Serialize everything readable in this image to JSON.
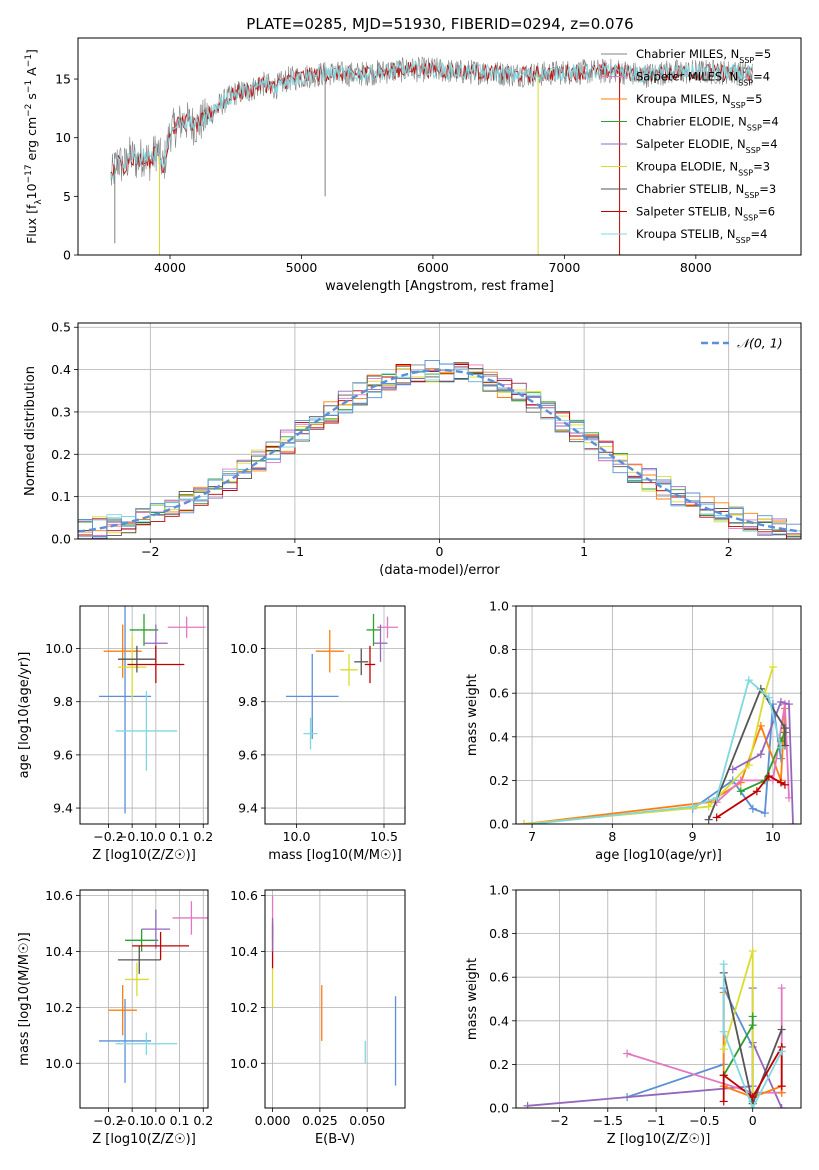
{
  "title": "PLATE=0285, MJD=51930, FIBERID=0294, z=0.076",
  "colors": {
    "chabrier_miles": "#1f77b4",
    "salpeter_miles": "#e377c2",
    "kroupa_miles": "#ff7f0e",
    "chabrier_elodie": "#2ca02c",
    "salpeter_elodie": "#9467bd",
    "kroupa_elodie": "#dbdb2d",
    "chabrier_stelib": "#555555",
    "salpeter_stelib": "#c00000",
    "kroupa_stelib": "#7fd8e0",
    "gaussian": "#5b8fd9"
  },
  "chart_data": [
    {
      "id": "spectrum",
      "type": "line",
      "title": "PLATE=0285, MJD=51930, FIBERID=0294, z=0.076",
      "xlabel": "wavelength [Angstrom, rest frame]",
      "ylabel_parts": [
        "Flux [f",
        "λ",
        "10",
        "−17",
        " erg cm",
        "−2",
        " s",
        "−1",
        " A",
        "−1",
        "]"
      ],
      "xlim": [
        3300,
        8800
      ],
      "ylim": [
        0,
        18.5
      ],
      "xticks": [
        4000,
        5000,
        6000,
        7000,
        8000
      ],
      "yticks": [
        0,
        5,
        10,
        15
      ],
      "legend_position": "top-right",
      "series": [
        {
          "name_parts": [
            "Chabrier MILES, N",
            "SSP",
            "=5"
          ],
          "color": "#808080"
        },
        {
          "name_parts": [
            "Salpeter MILES, N",
            "SSP",
            "=4"
          ],
          "color": "#e377c2"
        },
        {
          "name_parts": [
            "Kroupa MILES, N",
            "SSP",
            "=5"
          ],
          "color": "#ff7f0e"
        },
        {
          "name_parts": [
            "Chabrier ELODIE, N",
            "SSP",
            "=4"
          ],
          "color": "#2ca02c"
        },
        {
          "name_parts": [
            "Salpeter ELODIE, N",
            "SSP",
            "=4"
          ],
          "color": "#9467bd"
        },
        {
          "name_parts": [
            "Kroupa ELODIE, N",
            "SSP",
            "=3"
          ],
          "color": "#dbdb2d"
        },
        {
          "name_parts": [
            "Chabrier STELIB, N",
            "SSP",
            "=3"
          ],
          "color": "#555555"
        },
        {
          "name_parts": [
            "Salpeter STELIB, N",
            "SSP",
            "=6"
          ],
          "color": "#c00000"
        },
        {
          "name_parts": [
            "Kroupa STELIB, N",
            "SSP",
            "=4"
          ],
          "color": "#7fd8e0"
        }
      ],
      "continuum": {
        "x": [
          3550,
          3600,
          3650,
          3700,
          3750,
          3800,
          3850,
          3900,
          3950,
          4000,
          4100,
          4200,
          4300,
          4400,
          4500,
          4600,
          4700,
          4800,
          4900,
          5000,
          5200,
          5400,
          5600,
          5800,
          6000,
          6200,
          6400,
          6600,
          6800,
          7000,
          7200,
          7400,
          7600,
          7800,
          8000,
          8200,
          8400
        ],
        "y": [
          6.5,
          8.0,
          7.5,
          8.5,
          8.0,
          8.5,
          8.0,
          9.0,
          7.5,
          10.5,
          11.5,
          11.0,
          12.0,
          13.0,
          13.8,
          14.0,
          14.6,
          14.3,
          15.0,
          15.2,
          15.5,
          15.4,
          15.6,
          15.8,
          15.8,
          15.6,
          15.6,
          15.4,
          15.4,
          15.6,
          15.6,
          15.7,
          15.3,
          15.6,
          15.6,
          15.6,
          15.5
        ]
      },
      "dips": [
        {
          "x": 3580,
          "y": 1.0,
          "color": "#808080"
        },
        {
          "x": 3920,
          "y": 0.0,
          "color": "#dbdb2d"
        },
        {
          "x": 6800,
          "y": 0.0,
          "color": "#dbdb2d"
        },
        {
          "x": 7420,
          "y": 0.0,
          "color": "#c00000"
        },
        {
          "x": 5180,
          "y": 5.0,
          "color": "#808080"
        }
      ]
    },
    {
      "id": "residuals",
      "type": "line",
      "xlabel": "(data-model)/error",
      "ylabel": "Normed distribution",
      "xlim": [
        -2.5,
        2.5
      ],
      "ylim": [
        0,
        0.51
      ],
      "xticks": [
        -2,
        -1,
        0,
        1,
        2
      ],
      "yticks": [
        0.0,
        0.1,
        0.2,
        0.3,
        0.4,
        0.5
      ],
      "grid": true,
      "legend_position": "top-right",
      "gaussian_label": "𝒩(0, 1)",
      "bin_width": 0.1,
      "hist_colors": [
        "#808080",
        "#e377c2",
        "#ff7f0e",
        "#2ca02c",
        "#9467bd",
        "#dbdb2d",
        "#555555",
        "#c00000",
        "#7fd8e0",
        "#5b8fd9"
      ]
    },
    {
      "id": "age_vs_Z",
      "type": "scatter",
      "xlabel": "Z [log10(Z/Z☉)]",
      "ylabel": "age [log10(age/yr)]",
      "xlim": [
        -0.32,
        0.22
      ],
      "ylim": [
        9.34,
        10.16
      ],
      "xticks": [
        -0.2,
        -0.1,
        0.0,
        0.1,
        0.2
      ],
      "yticks": [
        9.4,
        9.6,
        9.8,
        10.0
      ],
      "grid": true,
      "points": [
        {
          "x": -0.13,
          "y": 9.82,
          "xerr": 0.11,
          "yerr": 0.44,
          "color": "#5b8fd9"
        },
        {
          "x": 0.13,
          "y": 10.08,
          "xerr": 0.08,
          "yerr": 0.04,
          "color": "#e377c2"
        },
        {
          "x": -0.14,
          "y": 9.99,
          "xerr": 0.08,
          "yerr": 0.1,
          "color": "#ff7f0e"
        },
        {
          "x": -0.05,
          "y": 10.07,
          "xerr": 0.06,
          "yerr": 0.06,
          "color": "#2ca02c"
        },
        {
          "x": 0.0,
          "y": 10.02,
          "xerr": 0.05,
          "yerr": 0.07,
          "color": "#9467bd"
        },
        {
          "x": -0.1,
          "y": 9.93,
          "xerr": 0.06,
          "yerr": 0.12,
          "color": "#dbdb2d"
        },
        {
          "x": -0.08,
          "y": 9.96,
          "xerr": 0.08,
          "yerr": 0.05,
          "color": "#555555"
        },
        {
          "x": 0.0,
          "y": 9.94,
          "xerr": 0.12,
          "yerr": 0.07,
          "color": "#c00000"
        },
        {
          "x": -0.04,
          "y": 9.69,
          "xerr": 0.13,
          "yerr": 0.15,
          "color": "#7fd8e0"
        }
      ]
    },
    {
      "id": "age_vs_mass",
      "type": "scatter",
      "xlabel": "mass [log10(M/M☉)]",
      "ylabel": "",
      "xlim": [
        9.82,
        10.62
      ],
      "ylim": [
        9.34,
        10.16
      ],
      "xticks": [
        10.0,
        10.5
      ],
      "yticks": [
        9.4,
        9.6,
        9.8,
        10.0
      ],
      "grid": true,
      "points": [
        {
          "x": 10.09,
          "y": 9.82,
          "xerr": 0.15,
          "yerr": 0.16,
          "color": "#5b8fd9"
        },
        {
          "x": 10.52,
          "y": 10.08,
          "xerr": 0.06,
          "yerr": 0.04,
          "color": "#e377c2"
        },
        {
          "x": 10.19,
          "y": 9.99,
          "xerr": 0.08,
          "yerr": 0.08,
          "color": "#ff7f0e"
        },
        {
          "x": 10.44,
          "y": 10.07,
          "xerr": 0.04,
          "yerr": 0.06,
          "color": "#2ca02c"
        },
        {
          "x": 10.48,
          "y": 10.02,
          "xerr": 0.04,
          "yerr": 0.07,
          "color": "#9467bd"
        },
        {
          "x": 10.3,
          "y": 9.92,
          "xerr": 0.05,
          "yerr": 0.06,
          "color": "#dbdb2d"
        },
        {
          "x": 10.37,
          "y": 9.95,
          "xerr": 0.04,
          "yerr": 0.05,
          "color": "#555555"
        },
        {
          "x": 10.42,
          "y": 9.94,
          "xerr": 0.03,
          "yerr": 0.07,
          "color": "#c00000"
        },
        {
          "x": 10.08,
          "y": 9.68,
          "xerr": 0.04,
          "yerr": 0.06,
          "color": "#7fd8e0"
        }
      ]
    },
    {
      "id": "weight_vs_age",
      "type": "line",
      "xlabel": "age [log10(age/yr)]",
      "ylabel": "mass weight",
      "xlim": [
        6.8,
        10.35
      ],
      "ylim": [
        0,
        1.0
      ],
      "xticks": [
        7,
        8,
        9,
        10
      ],
      "yticks": [
        0.0,
        0.2,
        0.4,
        0.6,
        0.8,
        1.0
      ],
      "grid": true,
      "series": [
        {
          "color": "#5b8fd9",
          "x": [
            9.0,
            9.5,
            9.75,
            9.9,
            10.0,
            10.1
          ],
          "y": [
            0.07,
            0.2,
            0.07,
            0.05,
            0.55,
            0.3
          ]
        },
        {
          "color": "#ff7f0e",
          "x": [
            6.9,
            9.2,
            9.6,
            9.85,
            10.1,
            10.15
          ],
          "y": [
            0.0,
            0.1,
            0.19,
            0.45,
            0.2,
            0.53
          ]
        },
        {
          "color": "#dbdb2d",
          "x": [
            6.9,
            9.2,
            9.7,
            9.9,
            10.0
          ],
          "y": [
            0.0,
            0.08,
            0.27,
            0.6,
            0.72
          ]
        },
        {
          "color": "#e377c2",
          "x": [
            9.3,
            9.6,
            10.0,
            10.15,
            10.2
          ],
          "y": [
            0.1,
            0.2,
            0.2,
            0.55,
            0.12
          ]
        },
        {
          "color": "#9467bd",
          "x": [
            9.5,
            9.85,
            10.1,
            10.2,
            10.25
          ],
          "y": [
            0.25,
            0.32,
            0.56,
            0.55,
            0.0
          ]
        },
        {
          "color": "#2ca02c",
          "x": [
            9.6,
            9.9,
            10.1,
            10.15
          ],
          "y": [
            0.15,
            0.2,
            0.38,
            0.42
          ]
        },
        {
          "color": "#555555",
          "x": [
            9.2,
            9.85,
            10.15,
            10.15
          ],
          "y": [
            0.02,
            0.62,
            0.44,
            0.36
          ]
        },
        {
          "color": "#c00000",
          "x": [
            9.3,
            9.8,
            9.95,
            10.1,
            10.15
          ],
          "y": [
            0.03,
            0.15,
            0.22,
            0.19,
            0.18
          ]
        },
        {
          "color": "#7fd8e0",
          "x": [
            7.0,
            9.0,
            9.3,
            9.7,
            9.95,
            10.1
          ],
          "y": [
            0.0,
            0.08,
            0.12,
            0.66,
            0.58,
            0.35
          ]
        }
      ]
    },
    {
      "id": "mass_vs_Z",
      "type": "scatter",
      "xlabel": "Z [log10(Z/Z☉)]",
      "ylabel": "mass [log10(M/M☉)]",
      "xlim": [
        -0.32,
        0.22
      ],
      "ylim": [
        9.84,
        10.62
      ],
      "xticks": [
        -0.2,
        -0.1,
        0.0,
        0.1,
        0.2
      ],
      "yticks": [
        10.0,
        10.2,
        10.4,
        10.6
      ],
      "grid": true,
      "points": [
        {
          "x": -0.13,
          "y": 10.08,
          "xerr": 0.11,
          "yerr": 0.15,
          "color": "#5b8fd9"
        },
        {
          "x": 0.15,
          "y": 10.52,
          "xerr": 0.08,
          "yerr": 0.06,
          "color": "#e377c2"
        },
        {
          "x": -0.14,
          "y": 10.19,
          "xerr": 0.06,
          "yerr": 0.09,
          "color": "#ff7f0e"
        },
        {
          "x": -0.06,
          "y": 10.44,
          "xerr": 0.07,
          "yerr": 0.04,
          "color": "#2ca02c"
        },
        {
          "x": 0.0,
          "y": 10.48,
          "xerr": 0.06,
          "yerr": 0.07,
          "color": "#9467bd"
        },
        {
          "x": -0.08,
          "y": 10.3,
          "xerr": 0.05,
          "yerr": 0.06,
          "color": "#dbdb2d"
        },
        {
          "x": -0.07,
          "y": 10.37,
          "xerr": 0.09,
          "yerr": 0.05,
          "color": "#555555"
        },
        {
          "x": 0.02,
          "y": 10.42,
          "xerr": 0.12,
          "yerr": 0.05,
          "color": "#c00000"
        },
        {
          "x": -0.04,
          "y": 10.07,
          "xerr": 0.13,
          "yerr": 0.04,
          "color": "#7fd8e0"
        }
      ]
    },
    {
      "id": "mass_vs_ebv",
      "type": "scatter",
      "xlabel": "E(B-V)",
      "ylabel": "",
      "xlim": [
        -0.004,
        0.07
      ],
      "ylim": [
        9.84,
        10.62
      ],
      "xticks": [
        0.0,
        0.025,
        0.05
      ],
      "xtick_labels": [
        "0.000",
        "0.025",
        "0.050"
      ],
      "yticks": [
        10.0,
        10.2,
        10.4,
        10.6
      ],
      "grid": true,
      "points": [
        {
          "x": 0.065,
          "y": 10.08,
          "yerr": 0.16,
          "color": "#5b8fd9"
        },
        {
          "x": 0.026,
          "y": 10.18,
          "yerr": 0.1,
          "color": "#ff7f0e"
        },
        {
          "x": 0.049,
          "y": 10.04,
          "yerr": 0.04,
          "color": "#7fd8e0"
        },
        {
          "x": 0.0,
          "y": 10.52,
          "yerr": 0.08,
          "color": "#e377c2"
        },
        {
          "x": 0.0,
          "y": 10.27,
          "yerr": 0.07,
          "color": "#dbdb2d"
        },
        {
          "x": 0.0,
          "y": 10.42,
          "yerr": 0.08,
          "color": "#c00000"
        },
        {
          "x": 0.0,
          "y": 10.46,
          "yerr": 0.06,
          "color": "#9467bd"
        }
      ]
    },
    {
      "id": "weight_vs_Z",
      "type": "line",
      "xlabel": "Z [log10(Z/Z☉)]",
      "ylabel": "mass weight",
      "xlim": [
        -2.45,
        0.5
      ],
      "ylim": [
        0,
        1.0
      ],
      "xticks": [
        -2.0,
        -1.5,
        -1.0,
        -0.5,
        0.0
      ],
      "yticks": [
        0.0,
        0.2,
        0.4,
        0.6,
        0.8,
        1.0
      ],
      "grid": true,
      "series": [
        {
          "color": "#5b8fd9",
          "x": [
            -1.3,
            -0.3,
            -0.3,
            0.0,
            0.0
          ],
          "y": [
            0.05,
            0.2,
            0.55,
            0.28,
            0.03
          ]
        },
        {
          "color": "#9467bd",
          "x": [
            -2.33,
            0.0,
            0.0,
            0.0,
            0.3
          ],
          "y": [
            0.01,
            0.1,
            0.55,
            0.3,
            0.0
          ]
        },
        {
          "color": "#e377c2",
          "x": [
            -1.3,
            0.0,
            0.3,
            0.3
          ],
          "y": [
            0.25,
            0.07,
            0.07,
            0.55
          ]
        },
        {
          "color": "#ff7f0e",
          "x": [
            -0.3,
            -0.3,
            0.0,
            0.3,
            0.3
          ],
          "y": [
            0.53,
            0.1,
            0.05,
            0.1,
            0.07
          ]
        },
        {
          "color": "#dbdb2d",
          "x": [
            -0.3,
            0.0,
            0.0
          ],
          "y": [
            0.27,
            0.72,
            0.02
          ]
        },
        {
          "color": "#2ca02c",
          "x": [
            -0.3,
            0.0,
            0.0
          ],
          "y": [
            0.15,
            0.38,
            0.42
          ]
        },
        {
          "color": "#555555",
          "x": [
            -0.3,
            0.0,
            0.3
          ],
          "y": [
            0.62,
            0.02,
            0.36
          ]
        },
        {
          "color": "#c00000",
          "x": [
            -0.3,
            -0.3,
            0.0,
            0.3,
            0.3
          ],
          "y": [
            0.03,
            0.15,
            0.05,
            0.28,
            0.1
          ]
        },
        {
          "color": "#7fd8e0",
          "x": [
            -0.3,
            -0.3,
            0.0,
            0.3
          ],
          "y": [
            0.66,
            0.35,
            0.0,
            0.26
          ]
        }
      ]
    }
  ]
}
